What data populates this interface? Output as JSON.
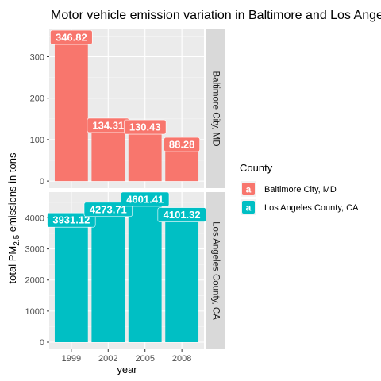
{
  "chart_data": {
    "type": "bar",
    "title": "Motor vehicle emission variation in Baltimore and Los Angeles",
    "xlabel": "year",
    "ylabel": {
      "before": "total PM",
      "subscript": "2.5",
      "after": " emissions in tons"
    },
    "categories": [
      "1999",
      "2002",
      "2005",
      "2008"
    ],
    "facets": [
      {
        "strip": "Baltimore City, MD",
        "color": "#F8766D",
        "values": [
          346.82,
          134.31,
          130.43,
          88.28
        ],
        "labels": [
          "346.82",
          "134.31",
          "130.43",
          "88.28"
        ],
        "ylim": [
          -17,
          366
        ],
        "yticks": [
          0,
          100,
          200,
          300
        ]
      },
      {
        "strip": "Los Angeles County, CA",
        "color": "#00BFC4",
        "values": [
          3931.12,
          4273.71,
          4601.41,
          4101.32
        ],
        "labels": [
          "3931.12",
          "4273.71",
          "4601.41",
          "4101.32"
        ],
        "ylim": [
          -230,
          4830
        ],
        "yticks": [
          0,
          1000,
          2000,
          3000,
          4000
        ]
      }
    ],
    "legend": {
      "title": "County",
      "position": "right",
      "key_letter": "a",
      "items": [
        {
          "label": "Baltimore City, MD",
          "color": "#F8766D"
        },
        {
          "label": "Los Angeles County, CA",
          "color": "#00BFC4"
        }
      ]
    },
    "grid": true,
    "panel_background": "#EBEBEB",
    "strip_background": "#D9D9D9"
  }
}
